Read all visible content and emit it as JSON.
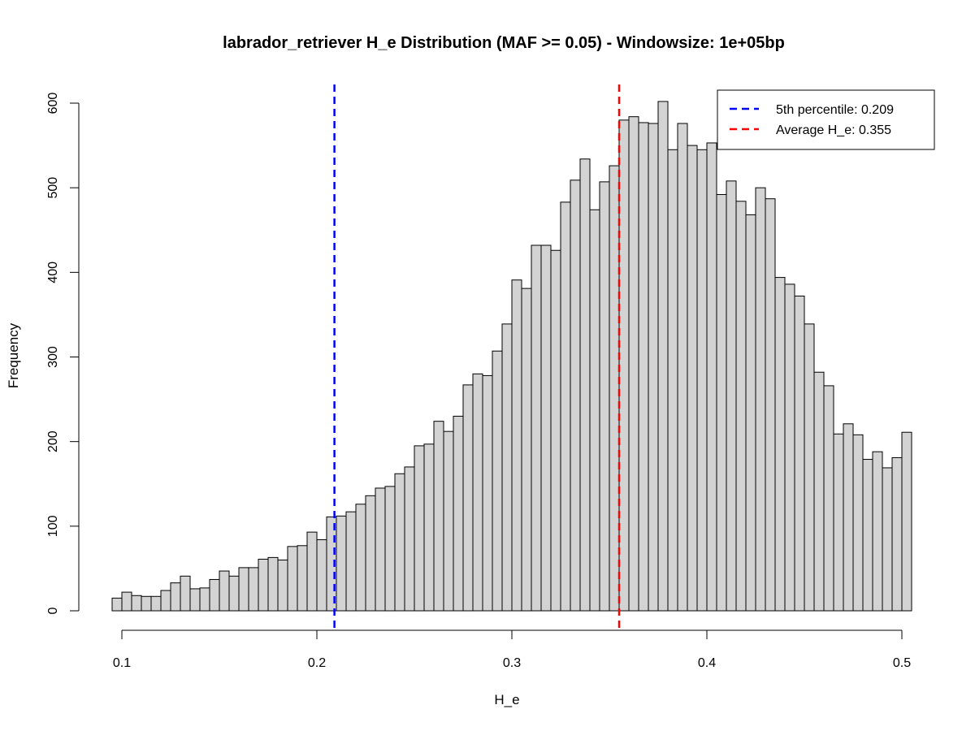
{
  "chart_data": {
    "type": "bar",
    "title": "labrador_retriever H_e Distribution (MAF >= 0.05) - Windowsize: 1e+05bp",
    "xlabel": "H_e",
    "ylabel": "Frequency",
    "xlim": [
      0.095,
      0.5
    ],
    "ylim": [
      0,
      600
    ],
    "x_ticks": [
      "0.1",
      "0.2",
      "0.3",
      "0.4",
      "0.5"
    ],
    "y_ticks": [
      "0",
      "100",
      "200",
      "300",
      "400",
      "500",
      "600"
    ],
    "bin_width": 0.005,
    "bin_start": 0.095,
    "values": [
      15,
      22,
      18,
      17,
      17,
      24,
      33,
      41,
      26,
      27,
      37,
      47,
      41,
      51,
      51,
      61,
      63,
      60,
      76,
      77,
      93,
      84,
      111,
      112,
      117,
      126,
      136,
      145,
      147,
      162,
      170,
      195,
      197,
      224,
      212,
      230,
      267,
      280,
      278,
      307,
      339,
      391,
      381,
      432,
      432,
      426,
      483,
      509,
      534,
      474,
      507,
      526,
      580,
      584,
      577,
      576,
      602,
      545,
      576,
      550,
      545,
      553,
      492,
      508,
      484,
      468,
      500,
      487,
      394,
      386,
      372,
      339,
      282,
      266,
      209,
      221,
      208,
      179,
      188,
      169,
      181,
      211
    ],
    "bar_fill": "#d3d3d3",
    "bar_edge": "#000000",
    "grid": false,
    "reference_lines": [
      {
        "x": 0.209,
        "color": "#0000ff"
      },
      {
        "x": 0.355,
        "color": "#ff0000"
      }
    ],
    "legend": {
      "position": "top-right",
      "entries": [
        {
          "label": "5th percentile:  0.209",
          "color": "#0000ff"
        },
        {
          "label": "Average H_e:  0.355",
          "color": "#ff0000"
        }
      ]
    }
  }
}
